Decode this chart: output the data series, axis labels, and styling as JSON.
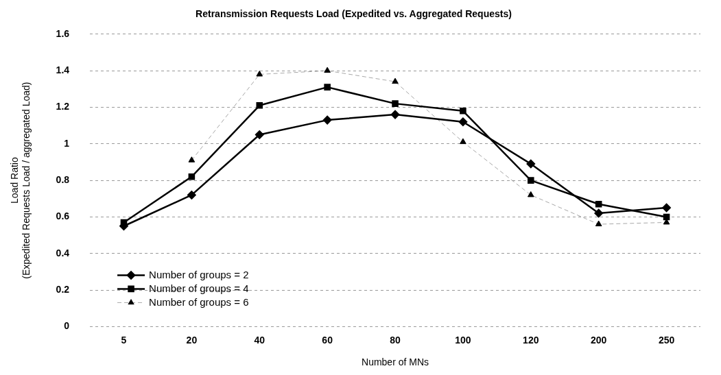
{
  "chart_data": {
    "type": "line",
    "title": "Retransmission Requests Load (Expedited vs. Aggregated Requests)",
    "xlabel": "Number of MNs",
    "ylabel": "Load Ratio\n(Expedited Requests Load / aggregated Load)",
    "categories": [
      "5",
      "20",
      "40",
      "60",
      "80",
      "100",
      "120",
      "200",
      "250"
    ],
    "series": [
      {
        "name": "Number of groups = 2",
        "color": "#000000",
        "marker": "diamond",
        "line_style": "solid",
        "values": [
          0.55,
          0.72,
          1.05,
          1.13,
          1.16,
          1.12,
          0.89,
          0.62,
          0.65
        ]
      },
      {
        "name": "Number of groups = 4",
        "color": "#000000",
        "marker": "square",
        "line_style": "solid",
        "values": [
          0.57,
          0.82,
          1.21,
          1.31,
          1.22,
          1.18,
          0.8,
          0.67,
          0.6
        ]
      },
      {
        "name": "Number of groups = 6",
        "color": "#000000",
        "marker": "triangle",
        "line_style": "dashed",
        "values": [
          null,
          0.91,
          1.38,
          1.4,
          1.34,
          1.01,
          0.72,
          0.56,
          0.57
        ]
      }
    ],
    "ylim": [
      0,
      1.6
    ],
    "yticks": [
      0,
      0.2,
      0.4,
      0.6,
      0.8,
      1,
      1.2,
      1.4,
      1.6
    ],
    "grid": "y",
    "legend": "bottom left"
  }
}
